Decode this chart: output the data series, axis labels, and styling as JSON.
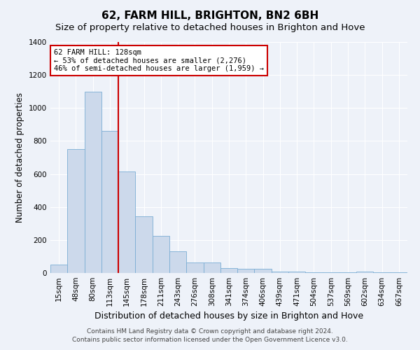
{
  "title": "62, FARM HILL, BRIGHTON, BN2 6BH",
  "subtitle": "Size of property relative to detached houses in Brighton and Hove",
  "xlabel": "Distribution of detached houses by size in Brighton and Hove",
  "ylabel": "Number of detached properties",
  "bar_labels": [
    "15sqm",
    "48sqm",
    "80sqm",
    "113sqm",
    "145sqm",
    "178sqm",
    "211sqm",
    "243sqm",
    "276sqm",
    "308sqm",
    "341sqm",
    "374sqm",
    "406sqm",
    "439sqm",
    "471sqm",
    "504sqm",
    "537sqm",
    "569sqm",
    "602sqm",
    "634sqm",
    "667sqm"
  ],
  "bar_heights": [
    50,
    750,
    1100,
    860,
    615,
    345,
    225,
    130,
    65,
    65,
    30,
    25,
    25,
    10,
    10,
    5,
    5,
    5,
    10,
    5,
    5
  ],
  "bar_color": "#ccd9eb",
  "bar_edge_color": "#7aadd4",
  "property_line_x": 3.5,
  "annotation_line1": "62 FARM HILL: 128sqm",
  "annotation_line2": "← 53% of detached houses are smaller (2,276)",
  "annotation_line3": "46% of semi-detached houses are larger (1,959) →",
  "annotation_box_color": "#ffffff",
  "annotation_box_edge": "#cc0000",
  "vline_color": "#cc0000",
  "ylim": [
    0,
    1400
  ],
  "yticks": [
    0,
    200,
    400,
    600,
    800,
    1000,
    1200,
    1400
  ],
  "background_color": "#eef2f9",
  "plot_bg_color": "#eef2f9",
  "grid_color": "#ffffff",
  "footer1": "Contains HM Land Registry data © Crown copyright and database right 2024.",
  "footer2": "Contains public sector information licensed under the Open Government Licence v3.0.",
  "title_fontsize": 11,
  "subtitle_fontsize": 9.5,
  "xlabel_fontsize": 9,
  "ylabel_fontsize": 8.5,
  "tick_fontsize": 7.5,
  "annotation_fontsize": 7.5,
  "footer_fontsize": 6.5
}
